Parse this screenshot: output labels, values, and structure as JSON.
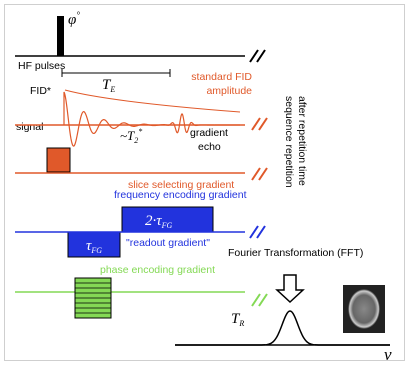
{
  "hf": {
    "angle": {
      "main": "φ",
      "sup": "°"
    },
    "label": "HF pulses",
    "te": {
      "main": "T",
      "sub": "E"
    }
  },
  "signal": {
    "label": "signal",
    "fid": "FID*",
    "amplitude": [
      "standard FID",
      "amplitude"
    ],
    "t2": {
      "main": "~T",
      "sub": "2",
      "sup": "*"
    },
    "echo": [
      "gradient",
      "echo"
    ]
  },
  "slice": {
    "label": "slice selecting gradient"
  },
  "frequency": {
    "label": "frequency encoding gradient",
    "readout_block": {
      "main": "2·τ",
      "sub": "FG"
    },
    "dephase_block": {
      "main": "τ",
      "sub": "FG"
    },
    "readout": "\"readout gradient\""
  },
  "phase": {
    "label": "phase encoding gradient"
  },
  "repetition": [
    "sequence repetition",
    "after repetition time"
  ],
  "fft": {
    "label": "Fourier Transformation (FFT)",
    "axis": "ν",
    "tr": {
      "main": "T",
      "sub": "R"
    }
  }
}
